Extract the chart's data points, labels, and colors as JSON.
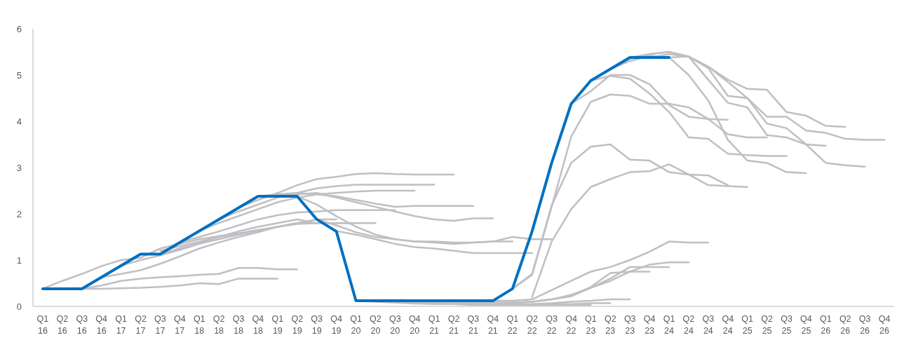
{
  "chart_data": {
    "type": "line",
    "categories": [
      "Q1 16",
      "Q2 16",
      "Q3 16",
      "Q4 16",
      "Q1 17",
      "Q2 17",
      "Q3 17",
      "Q4 17",
      "Q1 18",
      "Q2 18",
      "Q3 18",
      "Q4 18",
      "Q1 19",
      "Q2 19",
      "Q3 19",
      "Q4 19",
      "Q1 20",
      "Q2 20",
      "Q3 20",
      "Q4 20",
      "Q1 21",
      "Q2 21",
      "Q3 21",
      "Q4 21",
      "Q1 22",
      "Q2 22",
      "Q3 22",
      "Q4 22",
      "Q1 23",
      "Q2 23",
      "Q3 23",
      "Q4 23",
      "Q1 24",
      "Q2 24",
      "Q3 24",
      "Q4 24",
      "Q1 25",
      "Q2 25",
      "Q3 25",
      "Q4 25",
      "Q1 26",
      "Q2 26",
      "Q3 26",
      "Q4 26"
    ],
    "ylim": [
      0,
      6
    ],
    "yticks": [
      0,
      1,
      2,
      3,
      4,
      5,
      6
    ],
    "series": [
      {
        "color": "#bfbfc4",
        "values": [
          0.38,
          0.55,
          0.7,
          0.87,
          1.0,
          1.05,
          1.25,
          1.35,
          1.45,
          1.52,
          1.58,
          null,
          null,
          null,
          null,
          null,
          null,
          null,
          null,
          null,
          null,
          null,
          null,
          null,
          null,
          null,
          null,
          null,
          null,
          null,
          null,
          null,
          null,
          null,
          null,
          null,
          null,
          null,
          null,
          null,
          null,
          null,
          null,
          null
        ]
      },
      {
        "color": "#bfbfc4",
        "values": [
          null,
          null,
          0.38,
          0.38,
          0.39,
          0.4,
          0.42,
          0.45,
          0.5,
          0.48,
          0.6,
          0.6,
          0.6,
          null,
          null,
          null,
          null,
          null,
          null,
          null,
          null,
          null,
          null,
          null,
          null,
          null,
          null,
          null,
          null,
          null,
          null,
          null,
          null,
          null,
          null,
          null,
          null,
          null,
          null,
          null,
          null,
          null,
          null,
          null
        ]
      },
      {
        "color": "#bfbfc4",
        "values": [
          null,
          null,
          0.38,
          0.45,
          0.55,
          0.6,
          0.63,
          0.65,
          0.68,
          0.7,
          0.83,
          0.83,
          0.8,
          0.8,
          null,
          null,
          null,
          null,
          null,
          null,
          null,
          null,
          null,
          null,
          null,
          null,
          null,
          null,
          null,
          null,
          null,
          null,
          null,
          null,
          null,
          null,
          null,
          null,
          null,
          null,
          null,
          null,
          null,
          null
        ]
      },
      {
        "color": "#bfbfc4",
        "values": [
          null,
          null,
          null,
          0.63,
          0.7,
          0.78,
          0.92,
          1.08,
          1.25,
          1.38,
          1.5,
          1.6,
          1.72,
          1.8,
          1.8,
          null,
          null,
          null,
          null,
          null,
          null,
          null,
          null,
          null,
          null,
          null,
          null,
          null,
          null,
          null,
          null,
          null,
          null,
          null,
          null,
          null,
          null,
          null,
          null,
          null,
          null,
          null,
          null,
          null
        ]
      },
      {
        "color": "#bfbfc4",
        "values": [
          null,
          null,
          null,
          null,
          0.88,
          1.0,
          1.1,
          1.22,
          1.35,
          1.45,
          1.55,
          1.63,
          1.72,
          1.8,
          1.88,
          1.88,
          null,
          null,
          null,
          null,
          null,
          null,
          null,
          null,
          null,
          null,
          null,
          null,
          null,
          null,
          null,
          null,
          null,
          null,
          null,
          null,
          null,
          null,
          null,
          null,
          null,
          null,
          null,
          null
        ]
      },
      {
        "color": "#bfbfc4",
        "values": [
          null,
          null,
          null,
          null,
          null,
          null,
          1.2,
          1.3,
          1.4,
          1.5,
          1.58,
          1.65,
          1.72,
          1.78,
          1.8,
          1.8,
          1.8,
          null,
          null,
          null,
          null,
          null,
          null,
          null,
          null,
          null,
          null,
          null,
          null,
          null,
          null,
          null,
          null,
          null,
          null,
          null,
          null,
          null,
          null,
          null,
          null,
          null,
          null,
          null
        ]
      },
      {
        "color": "#bfbfc4",
        "values": [
          null,
          null,
          null,
          null,
          null,
          null,
          1.13,
          1.25,
          1.37,
          1.5,
          1.62,
          1.72,
          1.8,
          1.88,
          1.8,
          1.8,
          1.8,
          1.8,
          null,
          null,
          null,
          null,
          null,
          null,
          null,
          null,
          null,
          null,
          null,
          null,
          null,
          null,
          null,
          null,
          null,
          null,
          null,
          null,
          null,
          null,
          null,
          null,
          null,
          null
        ]
      },
      {
        "color": "#bfbfc4",
        "values": [
          null,
          null,
          null,
          null,
          null,
          null,
          null,
          1.38,
          1.5,
          1.62,
          1.75,
          1.88,
          1.97,
          2.03,
          2.05,
          2.08,
          2.08,
          2.08,
          2.08,
          null,
          null,
          null,
          null,
          null,
          null,
          null,
          null,
          null,
          null,
          null,
          null,
          null,
          null,
          null,
          null,
          null,
          null,
          null,
          null,
          null,
          null,
          null,
          null,
          null
        ]
      },
      {
        "color": "#bfbfc4",
        "values": [
          null,
          null,
          null,
          null,
          null,
          null,
          null,
          null,
          1.63,
          1.8,
          1.95,
          2.1,
          2.25,
          2.35,
          2.42,
          2.45,
          2.48,
          2.5,
          2.5,
          2.5,
          null,
          null,
          null,
          null,
          null,
          null,
          null,
          null,
          null,
          null,
          null,
          null,
          null,
          null,
          null,
          null,
          null,
          null,
          null,
          null,
          null,
          null,
          null,
          null
        ]
      },
      {
        "color": "#bfbfc4",
        "values": [
          null,
          null,
          null,
          null,
          null,
          null,
          null,
          null,
          null,
          1.88,
          2.05,
          2.2,
          2.35,
          2.45,
          2.55,
          2.6,
          2.63,
          2.63,
          2.63,
          2.63,
          2.63,
          null,
          null,
          null,
          null,
          null,
          null,
          null,
          null,
          null,
          null,
          null,
          null,
          null,
          null,
          null,
          null,
          null,
          null,
          null,
          null,
          null,
          null,
          null
        ]
      },
      {
        "color": "#bfbfc4",
        "values": [
          null,
          null,
          null,
          null,
          null,
          null,
          null,
          null,
          null,
          null,
          2.13,
          2.3,
          2.45,
          2.62,
          2.75,
          2.8,
          2.86,
          2.88,
          2.86,
          2.85,
          2.85,
          2.85,
          null,
          null,
          null,
          null,
          null,
          null,
          null,
          null,
          null,
          null,
          null,
          null,
          null,
          null,
          null,
          null,
          null,
          null,
          null,
          null,
          null,
          null
        ]
      },
      {
        "color": "#bfbfc4",
        "values": [
          null,
          null,
          null,
          null,
          null,
          null,
          null,
          null,
          null,
          null,
          null,
          2.38,
          2.42,
          2.45,
          2.42,
          2.38,
          2.3,
          2.22,
          2.15,
          2.17,
          2.17,
          2.17,
          2.17,
          null,
          null,
          null,
          null,
          null,
          null,
          null,
          null,
          null,
          null,
          null,
          null,
          null,
          null,
          null,
          null,
          null,
          null,
          null,
          null,
          null
        ]
      },
      {
        "color": "#bfbfc4",
        "values": [
          null,
          null,
          null,
          null,
          null,
          null,
          null,
          null,
          null,
          null,
          null,
          null,
          2.38,
          2.42,
          2.45,
          2.35,
          2.25,
          2.15,
          2.05,
          1.95,
          1.88,
          1.85,
          1.9,
          1.9,
          null,
          null,
          null,
          null,
          null,
          null,
          null,
          null,
          null,
          null,
          null,
          null,
          null,
          null,
          null,
          null,
          null,
          null,
          null,
          null
        ]
      },
      {
        "color": "#bfbfc4",
        "values": [
          null,
          null,
          null,
          null,
          null,
          null,
          null,
          null,
          null,
          null,
          null,
          null,
          null,
          2.38,
          2.2,
          1.95,
          1.72,
          1.55,
          1.45,
          1.4,
          1.38,
          1.35,
          1.38,
          1.4,
          1.5,
          1.45,
          1.45,
          null,
          null,
          null,
          null,
          null,
          null,
          null,
          null,
          null,
          null,
          null,
          null,
          null,
          null,
          null,
          null,
          null
        ]
      },
      {
        "color": "#bfbfc4",
        "values": [
          null,
          null,
          null,
          null,
          null,
          null,
          null,
          null,
          null,
          null,
          null,
          null,
          null,
          null,
          1.88,
          1.75,
          1.6,
          1.5,
          1.45,
          1.4,
          1.4,
          1.38,
          1.38,
          1.4,
          1.4,
          null,
          null,
          null,
          null,
          null,
          null,
          null,
          null,
          null,
          null,
          null,
          null,
          null,
          null,
          null,
          null,
          null,
          null,
          null
        ]
      },
      {
        "color": "#bfbfc4",
        "values": [
          null,
          null,
          null,
          null,
          null,
          null,
          null,
          null,
          null,
          null,
          null,
          null,
          null,
          null,
          null,
          1.63,
          1.55,
          1.45,
          1.35,
          1.28,
          1.25,
          1.2,
          1.15,
          1.15,
          1.15,
          1.15,
          null,
          null,
          null,
          null,
          null,
          null,
          null,
          null,
          null,
          null,
          null,
          null,
          null,
          null,
          null,
          null,
          null,
          null
        ]
      },
      {
        "color": "#bfbfc4",
        "values": [
          null,
          null,
          null,
          null,
          null,
          null,
          null,
          null,
          null,
          null,
          null,
          null,
          null,
          null,
          null,
          null,
          0.12,
          0.1,
          0.08,
          0.06,
          0.05,
          0.05,
          0.03,
          0.03,
          0.03,
          0.03,
          0.03,
          0.03,
          0.03,
          null,
          null,
          null,
          null,
          null,
          null,
          null,
          null,
          null,
          null,
          null,
          null,
          null,
          null,
          null
        ]
      },
      {
        "color": "#bfbfc4",
        "values": [
          null,
          null,
          null,
          null,
          null,
          null,
          null,
          null,
          null,
          null,
          null,
          null,
          null,
          null,
          null,
          null,
          null,
          0.12,
          0.1,
          0.08,
          0.06,
          0.05,
          0.04,
          0.04,
          0.04,
          0.04,
          0.05,
          0.05,
          0.07,
          0.07,
          null,
          null,
          null,
          null,
          null,
          null,
          null,
          null,
          null,
          null,
          null,
          null,
          null,
          null
        ]
      },
      {
        "color": "#bfbfc4",
        "values": [
          null,
          null,
          null,
          null,
          null,
          null,
          null,
          null,
          null,
          null,
          null,
          null,
          null,
          null,
          null,
          null,
          null,
          null,
          0.12,
          0.1,
          0.08,
          0.06,
          0.05,
          0.05,
          0.05,
          0.05,
          0.07,
          0.1,
          0.12,
          0.15,
          0.15,
          null,
          null,
          null,
          null,
          null,
          null,
          null,
          null,
          null,
          null,
          null,
          null,
          null
        ]
      },
      {
        "color": "#bfbfc4",
        "values": [
          null,
          null,
          null,
          null,
          null,
          null,
          null,
          null,
          null,
          null,
          null,
          null,
          null,
          null,
          null,
          null,
          null,
          null,
          null,
          0.12,
          0.08,
          0.06,
          0.06,
          0.06,
          0.08,
          0.1,
          0.15,
          0.22,
          0.4,
          0.55,
          0.75,
          0.75,
          null,
          null,
          null,
          null,
          null,
          null,
          null,
          null,
          null,
          null,
          null,
          null
        ]
      },
      {
        "color": "#bfbfc4",
        "values": [
          null,
          null,
          null,
          null,
          null,
          null,
          null,
          null,
          null,
          null,
          null,
          null,
          null,
          null,
          null,
          null,
          null,
          null,
          null,
          null,
          0.12,
          0.1,
          0.08,
          0.08,
          0.08,
          0.1,
          0.15,
          0.25,
          0.4,
          0.6,
          0.85,
          0.85,
          0.85,
          null,
          null,
          null,
          null,
          null,
          null,
          null,
          null,
          null,
          null,
          null
        ]
      },
      {
        "color": "#bfbfc4",
        "values": [
          null,
          null,
          null,
          null,
          null,
          null,
          null,
          null,
          null,
          null,
          null,
          null,
          null,
          null,
          null,
          null,
          null,
          null,
          null,
          null,
          null,
          0.12,
          0.1,
          0.08,
          0.08,
          0.1,
          0.15,
          0.22,
          0.42,
          0.72,
          0.75,
          0.9,
          0.95,
          0.95,
          null,
          null,
          null,
          null,
          null,
          null,
          null,
          null,
          null,
          null
        ]
      },
      {
        "color": "#bfbfc4",
        "values": [
          null,
          null,
          null,
          null,
          null,
          null,
          null,
          null,
          null,
          null,
          null,
          null,
          null,
          null,
          null,
          null,
          null,
          null,
          null,
          null,
          null,
          null,
          0.12,
          0.12,
          0.12,
          0.15,
          0.35,
          0.55,
          0.75,
          0.85,
          1.0,
          1.18,
          1.4,
          1.38,
          1.38,
          null,
          null,
          null,
          null,
          null,
          null,
          null,
          null,
          null
        ]
      },
      {
        "color": "#bfbfc4",
        "values": [
          null,
          null,
          null,
          null,
          null,
          null,
          null,
          null,
          null,
          null,
          null,
          null,
          null,
          null,
          null,
          null,
          null,
          null,
          null,
          null,
          null,
          null,
          null,
          null,
          0.38,
          0.7,
          2.18,
          3.1,
          3.45,
          3.5,
          3.17,
          3.15,
          2.9,
          2.85,
          2.62,
          2.6,
          2.58,
          null,
          null,
          null,
          null,
          null,
          null,
          null
        ]
      },
      {
        "color": "#bfbfc4",
        "values": [
          null,
          null,
          null,
          null,
          null,
          null,
          null,
          null,
          null,
          null,
          null,
          null,
          null,
          null,
          null,
          null,
          null,
          null,
          null,
          null,
          null,
          null,
          null,
          null,
          null,
          0.2,
          1.4,
          2.1,
          2.58,
          2.75,
          2.9,
          2.92,
          3.07,
          2.85,
          2.83,
          2.62,
          null,
          null,
          null,
          null,
          null,
          null,
          null,
          null
        ]
      },
      {
        "color": "#bfbfc4",
        "values": [
          null,
          null,
          null,
          null,
          null,
          null,
          null,
          null,
          null,
          null,
          null,
          null,
          null,
          null,
          null,
          null,
          null,
          null,
          null,
          null,
          null,
          null,
          null,
          null,
          0.38,
          0.68,
          2.15,
          3.67,
          4.42,
          4.58,
          4.55,
          4.38,
          4.38,
          4.3,
          4.05,
          4.03,
          null,
          null,
          null,
          null,
          null,
          null,
          null,
          null
        ]
      },
      {
        "color": "#bfbfc4",
        "values": [
          null,
          null,
          null,
          null,
          null,
          null,
          null,
          null,
          null,
          null,
          null,
          null,
          null,
          null,
          null,
          null,
          null,
          null,
          null,
          null,
          null,
          null,
          null,
          null,
          null,
          null,
          3.1,
          4.38,
          4.65,
          5.0,
          5.0,
          4.8,
          4.35,
          4.1,
          4.05,
          3.72,
          3.65,
          3.65,
          null,
          null,
          null,
          null,
          null,
          null
        ]
      },
      {
        "color": "#bfbfc4",
        "values": [
          null,
          null,
          null,
          null,
          null,
          null,
          null,
          null,
          null,
          null,
          null,
          null,
          null,
          null,
          null,
          null,
          null,
          null,
          null,
          null,
          null,
          null,
          null,
          null,
          null,
          null,
          null,
          4.38,
          4.88,
          4.98,
          4.92,
          4.6,
          4.2,
          3.65,
          3.62,
          3.3,
          3.27,
          3.25,
          3.25,
          null,
          null,
          null,
          null,
          null
        ]
      },
      {
        "color": "#bfbfc4",
        "values": [
          null,
          null,
          null,
          null,
          null,
          null,
          null,
          null,
          null,
          null,
          null,
          null,
          null,
          null,
          null,
          null,
          null,
          null,
          null,
          null,
          null,
          null,
          null,
          null,
          null,
          null,
          null,
          null,
          4.88,
          5.13,
          5.3,
          5.42,
          5.38,
          5.0,
          4.45,
          3.6,
          3.15,
          3.1,
          2.9,
          2.88,
          null,
          null,
          null,
          null
        ]
      },
      {
        "color": "#bfbfc4",
        "values": [
          null,
          null,
          null,
          null,
          null,
          null,
          null,
          null,
          null,
          null,
          null,
          null,
          null,
          null,
          null,
          null,
          null,
          null,
          null,
          null,
          null,
          null,
          null,
          null,
          null,
          null,
          null,
          null,
          null,
          5.13,
          5.35,
          5.45,
          5.5,
          5.4,
          5.15,
          4.55,
          4.5,
          3.95,
          3.85,
          3.5,
          3.47,
          null,
          null,
          null
        ]
      },
      {
        "color": "#bfbfc4",
        "values": [
          null,
          null,
          null,
          null,
          null,
          null,
          null,
          null,
          null,
          null,
          null,
          null,
          null,
          null,
          null,
          null,
          null,
          null,
          null,
          null,
          null,
          null,
          null,
          null,
          null,
          null,
          null,
          null,
          null,
          null,
          5.38,
          5.45,
          5.5,
          5.4,
          5.18,
          4.9,
          4.7,
          4.68,
          4.2,
          4.12,
          3.9,
          3.88,
          null,
          null
        ]
      },
      {
        "color": "#bfbfc4",
        "values": [
          null,
          null,
          null,
          null,
          null,
          null,
          null,
          null,
          null,
          null,
          null,
          null,
          null,
          null,
          null,
          null,
          null,
          null,
          null,
          null,
          null,
          null,
          null,
          null,
          null,
          null,
          null,
          null,
          null,
          null,
          null,
          5.38,
          5.45,
          5.4,
          4.9,
          4.4,
          4.3,
          3.7,
          3.65,
          3.5,
          3.1,
          3.05,
          3.02,
          null
        ]
      },
      {
        "color": "#bfbfc4",
        "values": [
          null,
          null,
          null,
          null,
          null,
          null,
          null,
          null,
          null,
          null,
          null,
          null,
          null,
          null,
          null,
          null,
          null,
          null,
          null,
          null,
          null,
          null,
          null,
          null,
          null,
          null,
          null,
          null,
          null,
          null,
          null,
          null,
          5.38,
          5.4,
          5.18,
          4.85,
          4.5,
          4.1,
          4.1,
          3.8,
          3.75,
          3.62,
          3.6,
          3.6
        ]
      },
      {
        "color": "#0070c0",
        "values": [
          0.38,
          0.38,
          0.38,
          0.63,
          0.88,
          1.13,
          1.13,
          1.38,
          1.63,
          1.88,
          2.13,
          2.38,
          2.38,
          2.38,
          1.88,
          1.62,
          0.12,
          0.12,
          0.12,
          0.12,
          0.12,
          0.12,
          0.12,
          0.12,
          0.38,
          1.62,
          3.1,
          4.38,
          4.88,
          5.13,
          5.38,
          5.38,
          5.38,
          null,
          null,
          null,
          null,
          null,
          null,
          null,
          null,
          null,
          null,
          null
        ]
      }
    ]
  }
}
